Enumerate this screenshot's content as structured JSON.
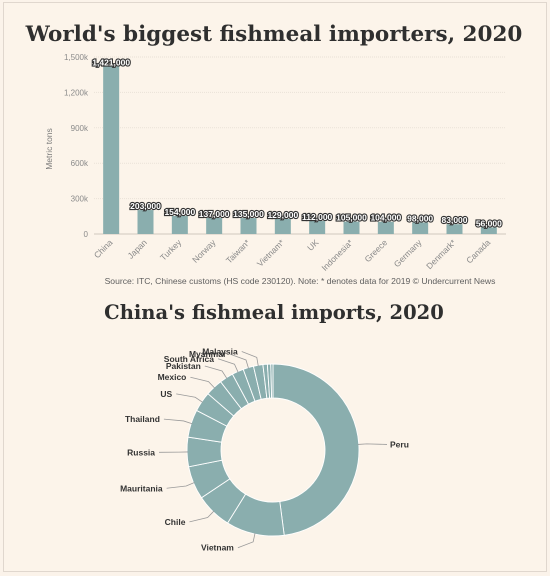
{
  "chart_data": [
    {
      "type": "bar",
      "title": "World's biggest fishmeal importers, 2020",
      "xlabel": "",
      "ylabel": "Metric tons",
      "ylim": [
        0,
        1500000
      ],
      "y_ticks": [
        0,
        300000,
        600000,
        900000,
        1200000,
        1500000
      ],
      "y_tick_labels": [
        "0",
        "300k",
        "600k",
        "900k",
        "1,200k",
        "1,500k"
      ],
      "grid": true,
      "categories": [
        "China",
        "Japan",
        "Turkey",
        "Norway",
        "Taiwan*",
        "Vietnam*",
        "UK",
        "Indonesia*",
        "Greece",
        "Germany",
        "Denmark*",
        "Canada"
      ],
      "values": [
        1421000,
        203000,
        154000,
        137000,
        135000,
        129000,
        112000,
        105000,
        104000,
        98000,
        83000,
        56000
      ],
      "value_labels": [
        "1,421,000",
        "203,000",
        "154,000",
        "137,000",
        "135,000",
        "129,000",
        "112,000",
        "105,000",
        "104,000",
        "98,000",
        "83,000",
        "56,000"
      ],
      "bar_color": "#8aaeae",
      "source": "Source: ITC, Chinese customs (HS code 230120). Note: * denotes data for 2019 © Undercurrent News"
    },
    {
      "type": "pie",
      "title": "China's fishmeal imports, 2020",
      "donut": true,
      "slice_color": "#8aaeae",
      "labels": [
        "Peru",
        "Vietnam",
        "Chile",
        "Mauritania",
        "Russia",
        "Thailand",
        "US",
        "Mexico",
        "Pakistan",
        "South Africa",
        "Myanmar",
        "Malaysia",
        "",
        "",
        ""
      ],
      "values": [
        46.0,
        10.5,
        6.5,
        6.0,
        5.3,
        5.0,
        3.6,
        3.1,
        2.5,
        2.1,
        1.9,
        1.7,
        0.8,
        0.6,
        0.4
      ]
    }
  ]
}
